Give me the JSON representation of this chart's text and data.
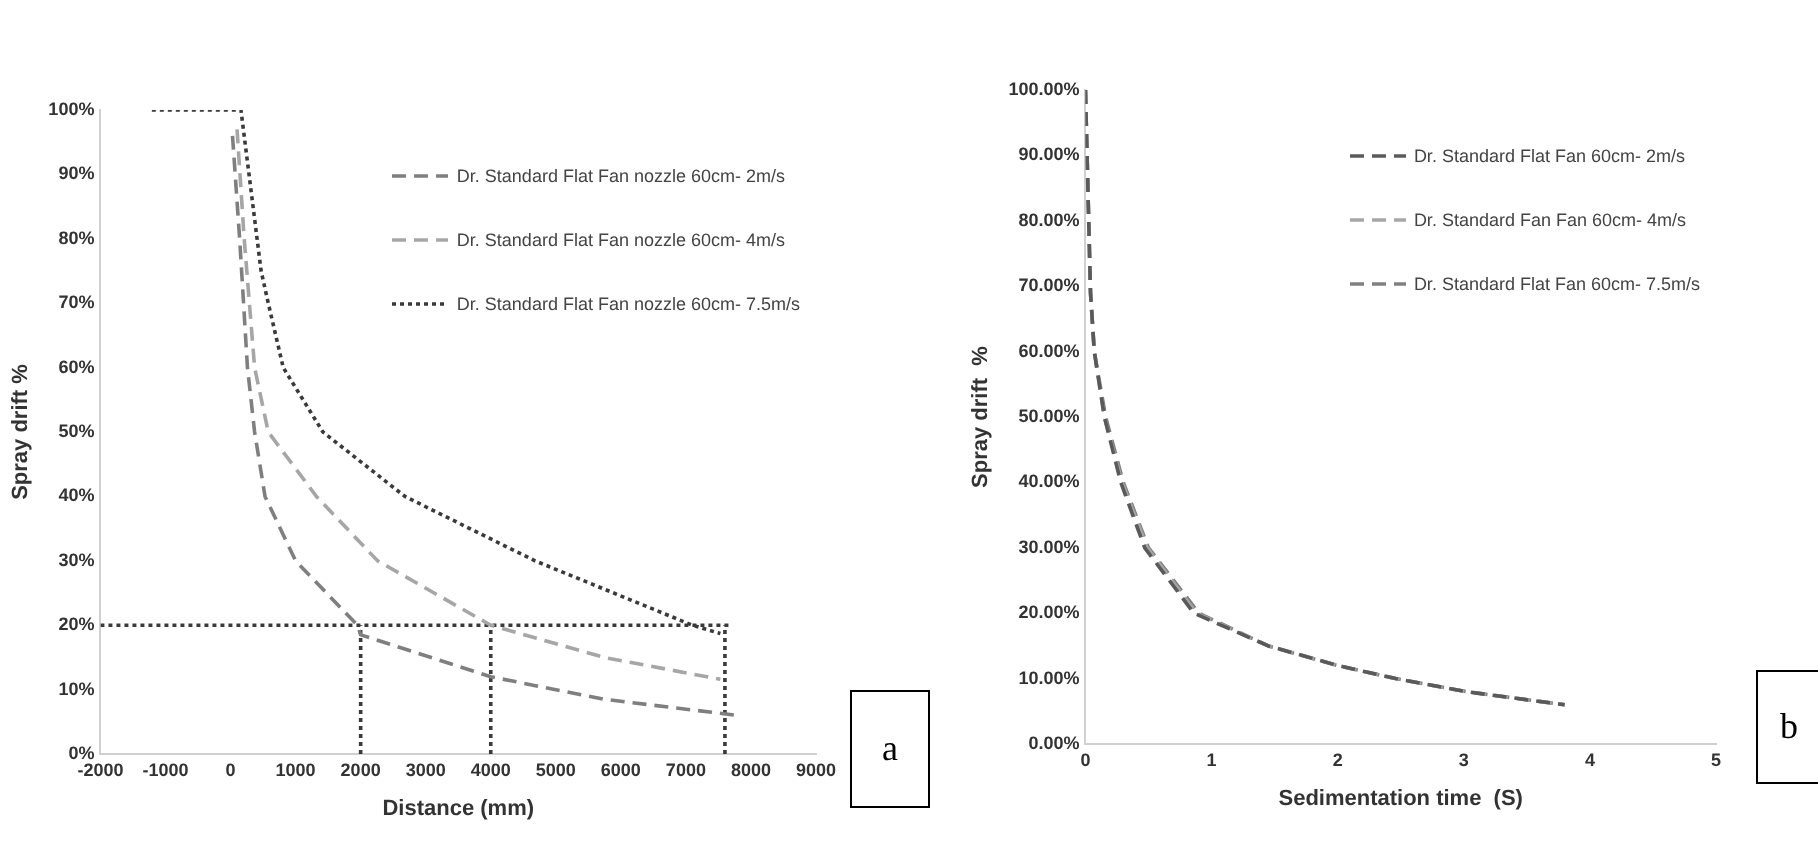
{
  "chart_data": [
    {
      "type": "line",
      "xlabel": "Distance (mm)",
      "ylabel": "Spray drift %",
      "xlim": [
        -2000,
        9000
      ],
      "xticks": [
        -2000,
        -1000,
        0,
        1000,
        2000,
        3000,
        4000,
        5000,
        6000,
        7000,
        8000,
        9000
      ],
      "ylim": [
        0,
        100
      ],
      "yticks": [
        {
          "value": 0,
          "label": "0%"
        },
        {
          "value": 10,
          "label": "10%"
        },
        {
          "value": 20,
          "label": "20%"
        },
        {
          "value": 30,
          "label": "30%"
        },
        {
          "value": 40,
          "label": "40%"
        },
        {
          "value": 50,
          "label": "50%"
        },
        {
          "value": 60,
          "label": "60%"
        },
        {
          "value": 70,
          "label": "70%"
        },
        {
          "value": 80,
          "label": "80%"
        },
        {
          "value": 90,
          "label": "90%"
        },
        {
          "value": 100,
          "label": "100%"
        }
      ],
      "legend": "top right",
      "annotations": [
        "a"
      ],
      "series": [
        {
          "name": "Dr. Standard Flat Fan nozzle 60cm- 2m/s",
          "color": "#7f7f7f",
          "line_style": "dashed",
          "x": [
            30,
            140,
            260,
            370,
            530,
            1000,
            1950,
            2000,
            4000,
            5740,
            7790
          ],
          "values": [
            96,
            80,
            60,
            50,
            40,
            30,
            20,
            18.5,
            12,
            8.5,
            6
          ]
        },
        {
          "name": "Dr. Standard Flat Fan nozzle 60cm- 4m/s",
          "color": "#a6a6a6",
          "line_style": "dashed",
          "x": [
            100,
            210,
            370,
            580,
            1320,
            2260,
            4000,
            5740,
            7530
          ],
          "values": [
            97,
            80,
            60,
            50,
            40,
            30,
            20,
            15,
            11.6
          ]
        },
        {
          "name": "Dr. Standard Flat Fan nozzle 60cm- 7.5m/s",
          "color": "#3a3a3a",
          "line_style": "dotted",
          "x": [
            -1210,
            160,
            470,
            580,
            810,
            1420,
            2680,
            4680,
            7100,
            7530
          ],
          "values": [
            100,
            100,
            75,
            70,
            60,
            50,
            40,
            30,
            20,
            18.7
          ]
        },
        {
          "color": "#3a3a3a",
          "line_style": "dotted",
          "x": [
            -2000,
            7700
          ],
          "values": [
            20,
            20
          ]
        },
        {
          "color": "#3a3a3a",
          "line_style": "dotted",
          "x": [
            2000,
            2000
          ],
          "values": [
            0,
            20
          ]
        },
        {
          "color": "#3a3a3a",
          "line_style": "dotted",
          "x": [
            4000,
            4000
          ],
          "values": [
            0,
            20
          ]
        },
        {
          "color": "#3a3a3a",
          "line_style": "dotted",
          "x": [
            7600,
            7600
          ],
          "values": [
            0,
            20
          ]
        }
      ]
    },
    {
      "type": "line",
      "xlabel": "Sedimentation time  (S)",
      "ylabel": "Spray drift  %",
      "xlim": [
        0,
        5
      ],
      "xticks": [
        0,
        1,
        2,
        3,
        4,
        5
      ],
      "ylim": [
        0,
        100
      ],
      "yticks": [
        {
          "value": 0,
          "label": "0.00%"
        },
        {
          "value": 10,
          "label": "10.00%"
        },
        {
          "value": 20,
          "label": "20.00%"
        },
        {
          "value": 30,
          "label": "30.00%"
        },
        {
          "value": 40,
          "label": "40.00%"
        },
        {
          "value": 50,
          "label": "50.00%"
        },
        {
          "value": 60,
          "label": "60.00%"
        },
        {
          "value": 70,
          "label": "70.00%"
        },
        {
          "value": 80,
          "label": "80.00%"
        },
        {
          "value": 90,
          "label": "90.00%"
        },
        {
          "value": 100,
          "label": "100.00%"
        }
      ],
      "legend": "top right",
      "annotations": [
        "b"
      ],
      "series": [
        {
          "name": "Dr. Standard Flat Fan 60cm- 2m/s",
          "color": "#5a5a5a",
          "line_style": "dashed",
          "x": [
            0,
            0.04,
            0.07,
            0.15,
            0.28,
            0.47,
            0.86,
            1.45,
            2,
            2.46,
            3.02,
            3.8
          ],
          "values": [
            100,
            69,
            60,
            50,
            40,
            30,
            20,
            15,
            12,
            10,
            8,
            6
          ]
        },
        {
          "name": "Dr. Standard Fan Fan 60cm- 4m/s",
          "color": "#a6a6a6",
          "line_style": "dashed",
          "x": [
            0,
            0.04,
            0.07,
            0.15,
            0.29,
            0.49,
            0.88,
            1.45,
            2,
            2.46,
            3.02,
            3.8
          ],
          "values": [
            100,
            69,
            60,
            50,
            40,
            30,
            20,
            15,
            12,
            10,
            8,
            6
          ]
        },
        {
          "name": "Dr. Standard Flat Fan 60cm- 7.5m/s",
          "color": "#808080",
          "line_style": "dashed",
          "x": [
            0,
            0.04,
            0.07,
            0.16,
            0.3,
            0.5,
            0.9,
            1.45,
            2,
            2.46,
            3.02,
            3.8
          ],
          "values": [
            100,
            69,
            60,
            50,
            40,
            30,
            20,
            15,
            12,
            10,
            8,
            6
          ]
        }
      ]
    }
  ]
}
